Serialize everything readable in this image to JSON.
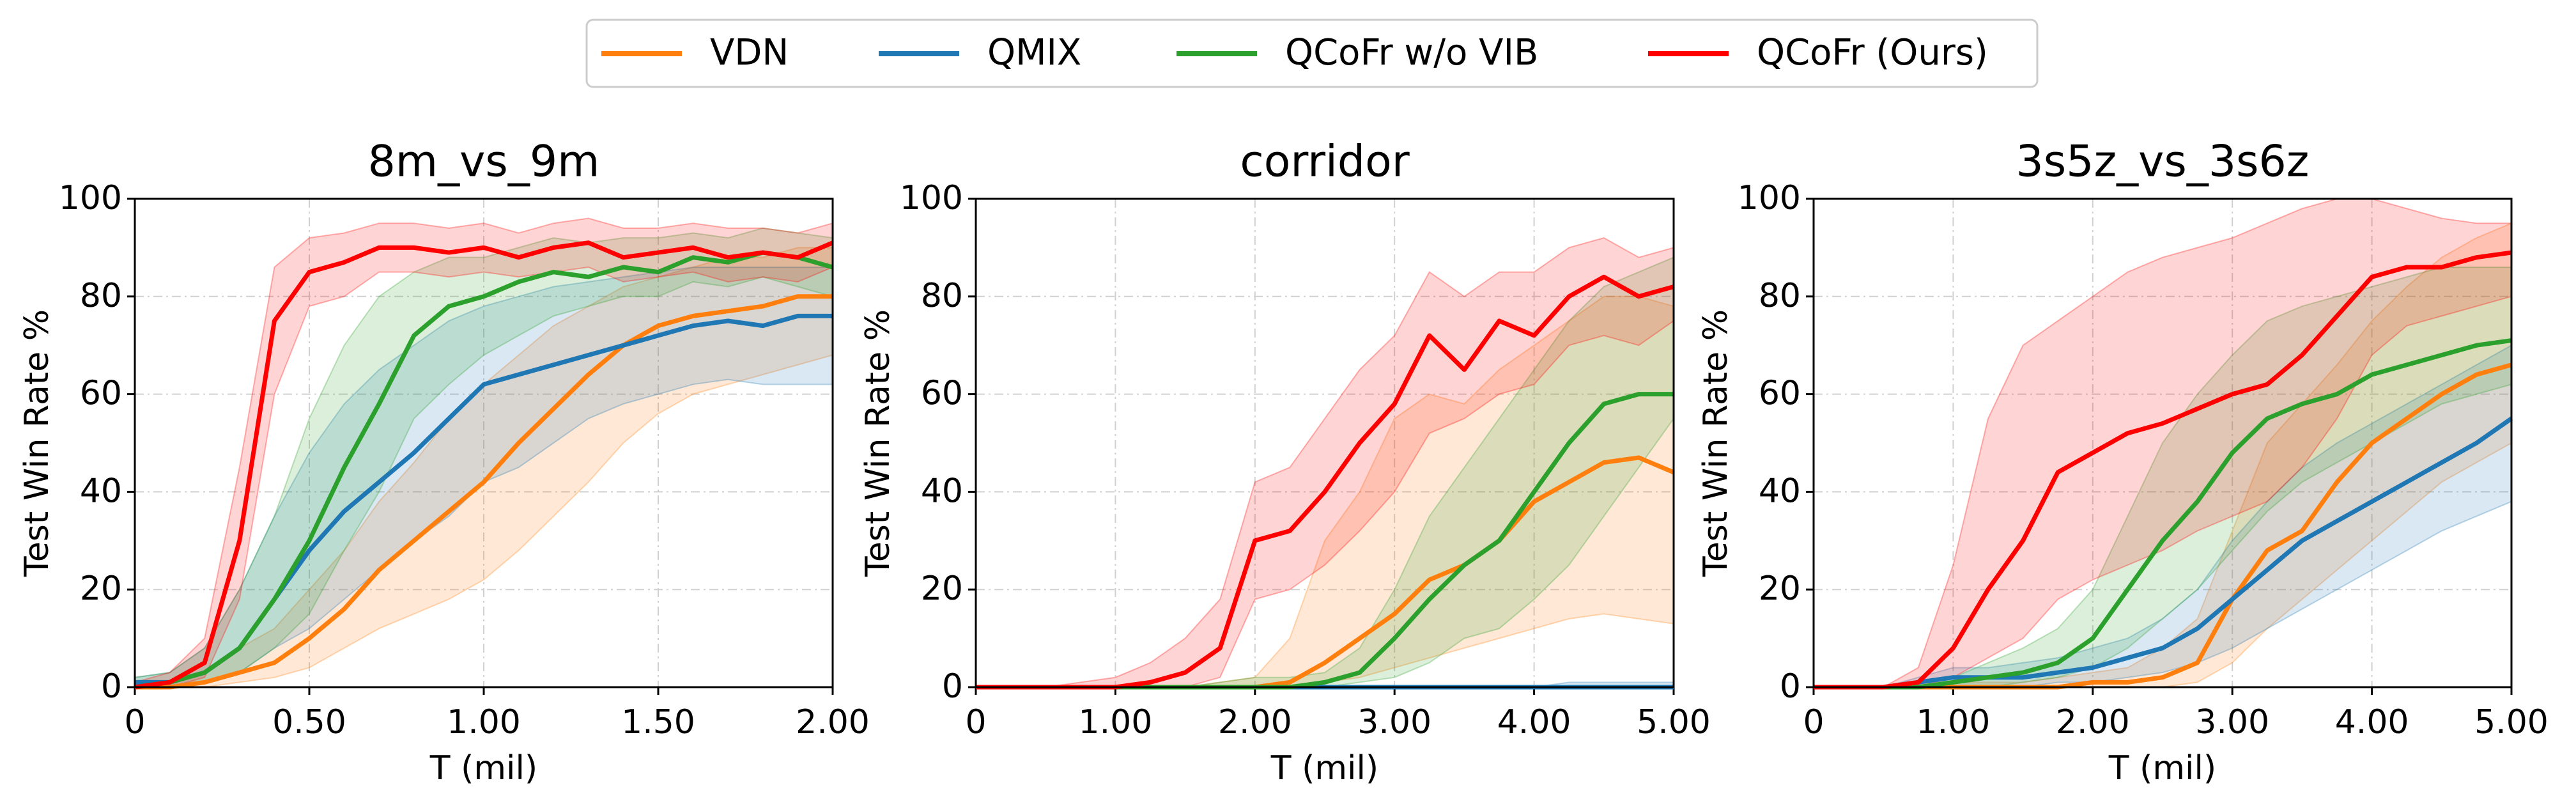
{
  "chart_data": [
    {
      "type": "line",
      "title": "8m_vs_9m",
      "x_label": "T (mil)",
      "y_label": "Test Win Rate %",
      "x": [
        0,
        0.1,
        0.2,
        0.3,
        0.4,
        0.5,
        0.6,
        0.7,
        0.8,
        0.9,
        1.0,
        1.1,
        1.2,
        1.3,
        1.4,
        1.5,
        1.6,
        1.7,
        1.8,
        1.9,
        2.0
      ],
      "xlim": [
        0,
        2
      ],
      "xticks": [
        0,
        {
          "value": 0.5,
          "label": "0.50"
        },
        {
          "value": 1,
          "label": "1.00"
        },
        {
          "value": 1.5,
          "label": "1.50"
        },
        {
          "value": 2,
          "label": "2.00"
        }
      ],
      "ylim": [
        0,
        100
      ],
      "yticks": [
        0,
        20,
        40,
        60,
        80,
        100
      ],
      "grid": true,
      "series": [
        {
          "name": "VDN",
          "color": "#ff7f0e",
          "values": [
            0,
            0,
            1,
            3,
            5,
            10,
            16,
            24,
            30,
            36,
            42,
            50,
            57,
            64,
            70,
            74,
            76,
            77,
            78,
            80,
            80
          ],
          "lower": [
            0,
            0,
            0,
            1,
            2,
            4,
            8,
            12,
            15,
            18,
            22,
            28,
            35,
            42,
            50,
            56,
            60,
            62,
            64,
            66,
            68
          ],
          "upper": [
            1,
            1,
            3,
            8,
            12,
            20,
            28,
            38,
            46,
            55,
            62,
            68,
            74,
            78,
            82,
            84,
            86,
            88,
            88,
            90,
            90
          ]
        },
        {
          "name": "QMIX",
          "color": "#1f77b4",
          "values": [
            1,
            1,
            3,
            8,
            18,
            28,
            36,
            42,
            48,
            55,
            62,
            64,
            66,
            68,
            70,
            72,
            74,
            75,
            74,
            76,
            76
          ],
          "lower": [
            0,
            0,
            1,
            3,
            8,
            12,
            18,
            24,
            30,
            35,
            42,
            45,
            50,
            55,
            58,
            60,
            62,
            63,
            62,
            62,
            62
          ],
          "upper": [
            2,
            3,
            8,
            20,
            35,
            48,
            58,
            65,
            70,
            75,
            78,
            80,
            82,
            83,
            84,
            85,
            86,
            86,
            86,
            86,
            86
          ]
        },
        {
          "name": "QCoFr w/o VIB",
          "color": "#2ca02c",
          "values": [
            0,
            1,
            3,
            8,
            18,
            30,
            45,
            58,
            72,
            78,
            80,
            83,
            85,
            84,
            86,
            85,
            88,
            87,
            89,
            88,
            86
          ],
          "lower": [
            0,
            0,
            1,
            3,
            8,
            15,
            28,
            40,
            55,
            62,
            68,
            72,
            76,
            78,
            80,
            80,
            83,
            82,
            84,
            82,
            80
          ],
          "upper": [
            2,
            3,
            8,
            20,
            35,
            55,
            70,
            80,
            85,
            88,
            88,
            90,
            92,
            91,
            92,
            92,
            93,
            92,
            94,
            93,
            92
          ]
        },
        {
          "name": "QCoFr (Ours)",
          "color": "#ff0000",
          "values": [
            0,
            1,
            5,
            30,
            75,
            85,
            87,
            90,
            90,
            89,
            90,
            88,
            90,
            91,
            88,
            89,
            90,
            88,
            89,
            88,
            91
          ],
          "lower": [
            0,
            0,
            2,
            18,
            60,
            78,
            80,
            85,
            85,
            84,
            85,
            84,
            85,
            86,
            83,
            84,
            85,
            83,
            84,
            83,
            86
          ],
          "upper": [
            1,
            3,
            10,
            45,
            86,
            92,
            93,
            95,
            95,
            94,
            95,
            93,
            95,
            96,
            94,
            94,
            95,
            94,
            94,
            93,
            95
          ]
        }
      ]
    },
    {
      "type": "line",
      "title": "corridor",
      "x_label": "T (mil)",
      "y_label": "Test Win Rate %",
      "x": [
        0,
        0.25,
        0.5,
        0.75,
        1.0,
        1.25,
        1.5,
        1.75,
        2.0,
        2.25,
        2.5,
        2.75,
        3.0,
        3.25,
        3.5,
        3.75,
        4.0,
        4.25,
        4.5,
        4.75,
        5.0
      ],
      "xlim": [
        0,
        5
      ],
      "xticks": [
        0,
        {
          "value": 1,
          "label": "1.00"
        },
        {
          "value": 2,
          "label": "2.00"
        },
        {
          "value": 3,
          "label": "3.00"
        },
        {
          "value": 4,
          "label": "4.00"
        },
        {
          "value": 5,
          "label": "5.00"
        }
      ],
      "ylim": [
        0,
        100
      ],
      "yticks": [
        0,
        20,
        40,
        60,
        80,
        100
      ],
      "grid": true,
      "series": [
        {
          "name": "VDN",
          "color": "#ff7f0e",
          "values": [
            0,
            0,
            0,
            0,
            0,
            0,
            0,
            0,
            0,
            1,
            5,
            10,
            15,
            22,
            25,
            30,
            38,
            42,
            46,
            47,
            44
          ],
          "lower": [
            0,
            0,
            0,
            0,
            0,
            0,
            0,
            0,
            0,
            0,
            1,
            2,
            4,
            6,
            8,
            10,
            12,
            14,
            15,
            14,
            13
          ],
          "upper": [
            0,
            0,
            0,
            0,
            0,
            0,
            0,
            1,
            2,
            10,
            30,
            40,
            55,
            60,
            58,
            65,
            70,
            75,
            80,
            80,
            78
          ]
        },
        {
          "name": "QMIX",
          "color": "#1f77b4",
          "values": [
            0,
            0,
            0,
            0,
            0,
            0,
            0,
            0,
            0,
            0,
            0,
            0,
            0,
            0,
            0,
            0,
            0,
            0,
            0,
            0,
            0
          ],
          "lower": [
            0,
            0,
            0,
            0,
            0,
            0,
            0,
            0,
            0,
            0,
            0,
            0,
            0,
            0,
            0,
            0,
            0,
            0,
            0,
            0,
            0
          ],
          "upper": [
            0,
            0,
            0,
            0,
            0,
            0,
            0,
            0,
            0,
            0,
            0,
            0,
            0,
            0,
            0,
            0,
            0,
            1,
            1,
            1,
            1
          ]
        },
        {
          "name": "QCoFr w/o VIB",
          "color": "#2ca02c",
          "values": [
            0,
            0,
            0,
            0,
            0,
            0,
            0,
            0,
            0,
            0,
            1,
            3,
            10,
            18,
            25,
            30,
            40,
            50,
            58,
            60,
            60
          ],
          "lower": [
            0,
            0,
            0,
            0,
            0,
            0,
            0,
            0,
            0,
            0,
            0,
            1,
            2,
            5,
            10,
            12,
            18,
            25,
            35,
            45,
            55
          ],
          "upper": [
            0,
            0,
            0,
            0,
            0,
            0,
            0,
            1,
            2,
            2,
            3,
            8,
            20,
            35,
            45,
            55,
            65,
            75,
            82,
            85,
            88
          ]
        },
        {
          "name": "QCoFr (Ours)",
          "color": "#ff0000",
          "values": [
            0,
            0,
            0,
            0,
            0,
            1,
            3,
            8,
            30,
            32,
            40,
            50,
            58,
            72,
            65,
            75,
            72,
            80,
            84,
            80,
            82
          ],
          "lower": [
            0,
            0,
            0,
            0,
            0,
            0,
            0,
            2,
            18,
            20,
            25,
            32,
            40,
            52,
            55,
            60,
            62,
            70,
            72,
            70,
            75
          ],
          "upper": [
            0,
            0,
            0,
            1,
            2,
            5,
            10,
            18,
            42,
            45,
            55,
            65,
            72,
            85,
            80,
            85,
            85,
            90,
            92,
            88,
            90
          ]
        }
      ]
    },
    {
      "type": "line",
      "title": "3s5z_vs_3s6z",
      "x_label": "T (mil)",
      "y_label": "Test Win Rate %",
      "x": [
        0,
        0.25,
        0.5,
        0.75,
        1.0,
        1.25,
        1.5,
        1.75,
        2.0,
        2.25,
        2.5,
        2.75,
        3.0,
        3.25,
        3.5,
        3.75,
        4.0,
        4.25,
        4.5,
        4.75,
        5.0
      ],
      "xlim": [
        0,
        5
      ],
      "xticks": [
        0,
        {
          "value": 1,
          "label": "1.00"
        },
        {
          "value": 2,
          "label": "2.00"
        },
        {
          "value": 3,
          "label": "3.00"
        },
        {
          "value": 4,
          "label": "4.00"
        },
        {
          "value": 5,
          "label": "5.00"
        }
      ],
      "ylim": [
        0,
        100
      ],
      "yticks": [
        0,
        20,
        40,
        60,
        80,
        100
      ],
      "grid": true,
      "series": [
        {
          "name": "VDN",
          "color": "#ff7f0e",
          "values": [
            0,
            0,
            0,
            0,
            0,
            0,
            0,
            0,
            1,
            1,
            2,
            5,
            18,
            28,
            32,
            42,
            50,
            55,
            60,
            64,
            66
          ],
          "lower": [
            0,
            0,
            0,
            0,
            0,
            0,
            0,
            0,
            0,
            0,
            0,
            1,
            5,
            12,
            18,
            24,
            30,
            36,
            42,
            46,
            50
          ],
          "upper": [
            0,
            0,
            0,
            0,
            1,
            1,
            1,
            2,
            3,
            4,
            8,
            14,
            32,
            50,
            58,
            66,
            75,
            82,
            88,
            92,
            95
          ]
        },
        {
          "name": "QMIX",
          "color": "#1f77b4",
          "values": [
            0,
            0,
            0,
            1,
            2,
            2,
            2,
            3,
            4,
            6,
            8,
            12,
            18,
            24,
            30,
            34,
            38,
            42,
            46,
            50,
            55
          ],
          "lower": [
            0,
            0,
            0,
            0,
            0,
            0,
            0,
            1,
            1,
            2,
            3,
            5,
            8,
            12,
            16,
            20,
            24,
            28,
            32,
            35,
            38
          ],
          "upper": [
            0,
            0,
            0,
            2,
            4,
            4,
            5,
            6,
            8,
            10,
            14,
            20,
            30,
            38,
            45,
            50,
            54,
            58,
            62,
            66,
            70
          ]
        },
        {
          "name": "QCoFr w/o VIB",
          "color": "#2ca02c",
          "values": [
            0,
            0,
            0,
            0,
            1,
            2,
            3,
            5,
            10,
            20,
            30,
            38,
            48,
            55,
            58,
            60,
            64,
            66,
            68,
            70,
            71
          ],
          "lower": [
            0,
            0,
            0,
            0,
            0,
            0,
            1,
            2,
            4,
            8,
            14,
            20,
            28,
            36,
            42,
            46,
            50,
            54,
            58,
            60,
            62
          ],
          "upper": [
            0,
            0,
            0,
            1,
            2,
            5,
            8,
            12,
            20,
            35,
            50,
            60,
            68,
            75,
            78,
            80,
            82,
            84,
            86,
            86,
            86
          ]
        },
        {
          "name": "QCoFr (Ours)",
          "color": "#ff0000",
          "values": [
            0,
            0,
            0,
            1,
            8,
            20,
            30,
            44,
            48,
            52,
            54,
            57,
            60,
            62,
            68,
            76,
            84,
            86,
            86,
            88,
            89
          ],
          "lower": [
            0,
            0,
            0,
            0,
            2,
            6,
            10,
            18,
            22,
            25,
            28,
            32,
            35,
            38,
            45,
            55,
            68,
            74,
            76,
            78,
            80
          ],
          "upper": [
            0,
            0,
            0,
            4,
            25,
            55,
            70,
            75,
            80,
            85,
            88,
            90,
            92,
            95,
            98,
            100,
            100,
            98,
            96,
            95,
            95
          ]
        }
      ]
    }
  ]
}
